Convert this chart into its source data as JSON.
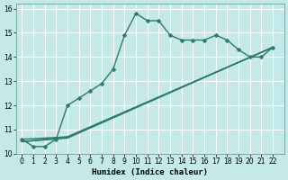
{
  "xlabel": "Humidex (Indice chaleur)",
  "xlim": [
    -0.5,
    23
  ],
  "ylim": [
    10,
    16.2
  ],
  "bg_color": "#c5e8e8",
  "grid_color": "#ffffff",
  "line_color": "#2d7a6e",
  "lines": [
    {
      "x": [
        0,
        1,
        2,
        3,
        4,
        5,
        6,
        7,
        8,
        9,
        10,
        11,
        12,
        13,
        14,
        15,
        16,
        17,
        18,
        19,
        20,
        21,
        22
      ],
      "y": [
        10.6,
        10.3,
        10.3,
        10.6,
        12.0,
        12.3,
        12.6,
        12.9,
        13.5,
        14.9,
        15.8,
        15.5,
        15.5,
        14.9,
        14.7,
        14.7,
        14.7,
        14.9,
        14.7,
        14.3,
        14.0,
        14.0,
        14.4
      ],
      "marker": true
    },
    {
      "x": [
        0,
        4,
        22
      ],
      "y": [
        10.6,
        10.7,
        14.4
      ],
      "marker": false
    },
    {
      "x": [
        0,
        4,
        22
      ],
      "y": [
        10.5,
        10.7,
        14.4
      ],
      "marker": false
    },
    {
      "x": [
        0,
        4,
        22
      ],
      "y": [
        10.5,
        10.65,
        14.4
      ],
      "marker": false
    }
  ],
  "marker_size": 2.5,
  "line_width": 1.0,
  "tick_fontsize": 5.5,
  "xlabel_fontsize": 6.5
}
